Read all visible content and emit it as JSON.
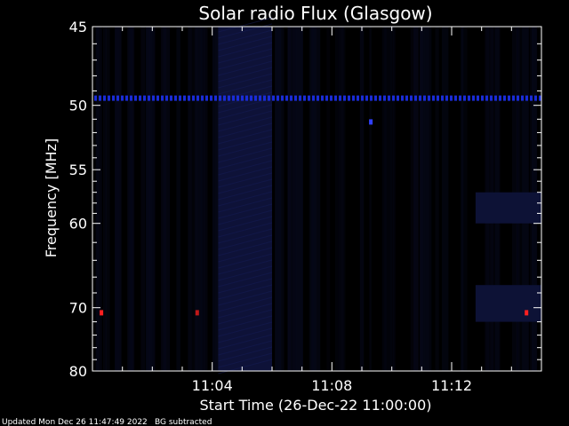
{
  "chart_data": {
    "type": "heatmap",
    "title": "Solar radio Flux (Glasgow)",
    "xlabel": "Start Time (26-Dec-22 11:00:00)",
    "ylabel": "Frequency [MHz]",
    "x_range_minutes": [
      0,
      15
    ],
    "x_tick_minutes": [
      4,
      8,
      12
    ],
    "x_tick_labels": [
      "11:04",
      "11:08",
      "11:12"
    ],
    "y_scale": "reciprocal",
    "y_range_mhz": [
      45,
      80
    ],
    "y_major_ticks": [
      45,
      50,
      55,
      60,
      70,
      80
    ],
    "y_tick_labels": [
      "45",
      "50",
      "55",
      "60",
      "70",
      "80"
    ],
    "y_minor_ticks": [
      46,
      47,
      48,
      49,
      51,
      52,
      53,
      54,
      56,
      57,
      58,
      59,
      62,
      64,
      66,
      68,
      72,
      74,
      76,
      78
    ],
    "background_color": "#000000",
    "rfi_line_mhz": 49.5,
    "rfi_line_color": "#1a2cd8",
    "enhanced_regions": [
      {
        "t_start": 4.2,
        "t_end": 6.0,
        "f_low": 45,
        "f_high": 80,
        "color": "#0e1238"
      },
      {
        "t_start": 12.8,
        "t_end": 15.0,
        "f_low": 57,
        "f_high": 60,
        "color": "#0d1236"
      },
      {
        "t_start": 12.8,
        "t_end": 15.0,
        "f_low": 67,
        "f_high": 72,
        "color": "#0d1236"
      }
    ],
    "hot_spots": [
      {
        "t": 0.3,
        "f": 70.7,
        "color": "#ff2020"
      },
      {
        "t": 3.5,
        "f": 70.7,
        "color": "#c01818"
      },
      {
        "t": 14.5,
        "f": 70.7,
        "color": "#ff2020"
      },
      {
        "t": 9.3,
        "f": 51.2,
        "color": "#3040ff"
      }
    ]
  },
  "footer": {
    "updated": "Updated Mon Dec 26 11:47:49 2022",
    "note": "BG subtracted"
  }
}
